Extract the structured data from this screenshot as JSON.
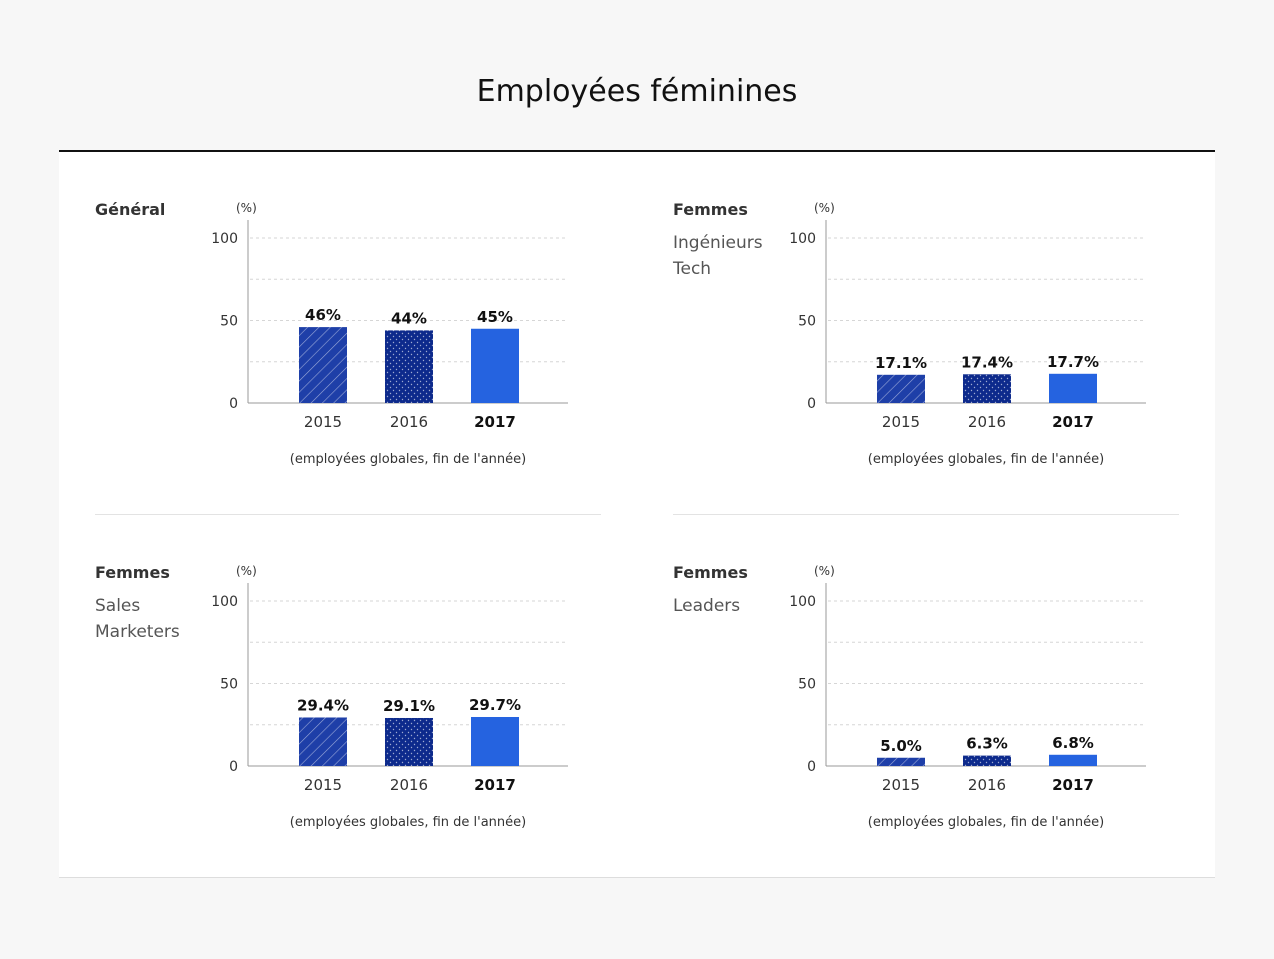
{
  "page_title": "Employées féminines",
  "colors": {
    "bar_2015": "#1e3fa8",
    "bar_2016": "#0d2a8c",
    "bar_2017": "#2563e0",
    "grid": "#d6d6d6",
    "axis": "#999999"
  },
  "chart_data": [
    {
      "type": "bar",
      "title": "Général",
      "subtitle": [],
      "unit": "(%)",
      "categories": [
        "2015",
        "2016",
        "2017"
      ],
      "values": [
        46,
        44,
        45
      ],
      "value_labels": [
        "46%",
        "44%",
        "45%"
      ],
      "yticks": [
        "0",
        "50",
        "100"
      ],
      "ylim": [
        0,
        100
      ],
      "note": "(employées globales, fin de l'année)"
    },
    {
      "type": "bar",
      "title": "Femmes",
      "subtitle": [
        "Ingénieurs",
        "Tech"
      ],
      "unit": "(%)",
      "categories": [
        "2015",
        "2016",
        "2017"
      ],
      "values": [
        17.1,
        17.4,
        17.7
      ],
      "value_labels": [
        "17.1%",
        "17.4%",
        "17.7%"
      ],
      "yticks": [
        "0",
        "50",
        "100"
      ],
      "ylim": [
        0,
        100
      ],
      "note": "(employées globales, fin de l'année)"
    },
    {
      "type": "bar",
      "title": "Femmes",
      "subtitle": [
        "Sales",
        "Marketers"
      ],
      "unit": "(%)",
      "categories": [
        "2015",
        "2016",
        "2017"
      ],
      "values": [
        29.4,
        29.1,
        29.7
      ],
      "value_labels": [
        "29.4%",
        "29.1%",
        "29.7%"
      ],
      "yticks": [
        "0",
        "50",
        "100"
      ],
      "ylim": [
        0,
        100
      ],
      "note": "(employées globales, fin de l'année)"
    },
    {
      "type": "bar",
      "title": "Femmes",
      "subtitle": [
        "Leaders"
      ],
      "unit": "(%)",
      "categories": [
        "2015",
        "2016",
        "2017"
      ],
      "values": [
        5.0,
        6.3,
        6.8
      ],
      "value_labels": [
        "5.0%",
        "6.3%",
        "6.8%"
      ],
      "yticks": [
        "0",
        "50",
        "100"
      ],
      "ylim": [
        0,
        100
      ],
      "note": "(employées globales, fin de l'année)"
    }
  ]
}
